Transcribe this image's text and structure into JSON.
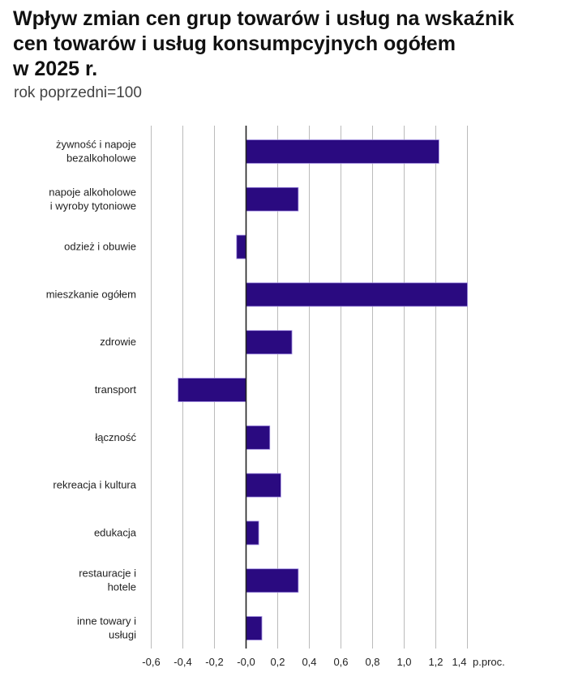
{
  "chart_data": {
    "type": "bar",
    "orientation": "horizontal",
    "title_lines": [
      "Wpływ zmian cen grup towarów i usług na wskaźnik",
      "cen towarów i usług konsumpcyjnych ogółem",
      "w 2025 r."
    ],
    "subtitle": "rok poprzedni=100",
    "categories": [
      [
        "żywność i napoje",
        "bezalkoholowe"
      ],
      [
        "napoje alkoholowe",
        "i wyroby tytoniowe"
      ],
      [
        "odzież i obuwie"
      ],
      [
        "mieszkanie ogółem"
      ],
      [
        "zdrowie"
      ],
      [
        "transport"
      ],
      [
        "łączność"
      ],
      [
        "rekreacja i kultura"
      ],
      [
        "edukacja"
      ],
      [
        "restauracje i",
        "hotele"
      ],
      [
        "inne towary i",
        "usługi"
      ]
    ],
    "values": [
      1.22,
      0.33,
      -0.06,
      1.4,
      0.29,
      -0.43,
      0.15,
      0.22,
      0.08,
      0.33,
      0.1
    ],
    "xunit": "p.proc.",
    "xlim": [
      -0.6,
      1.4
    ],
    "xticks": [
      -0.6,
      -0.4,
      -0.2,
      0.0,
      0.2,
      0.4,
      0.6,
      0.8,
      1.0,
      1.2,
      1.4
    ],
    "xtick_labels": [
      "-0,6",
      "-0,4",
      "-0,2",
      "-0,0",
      "0,2",
      "0,4",
      "0,6",
      "0,8",
      "1,0",
      "1,2",
      "1,4"
    ],
    "grid": true,
    "legend": "none",
    "colors": {
      "bar": "#2a0a80",
      "bar_edge": "#a08ce0",
      "grid": "#bbbbbb",
      "axis": "#222222"
    }
  }
}
